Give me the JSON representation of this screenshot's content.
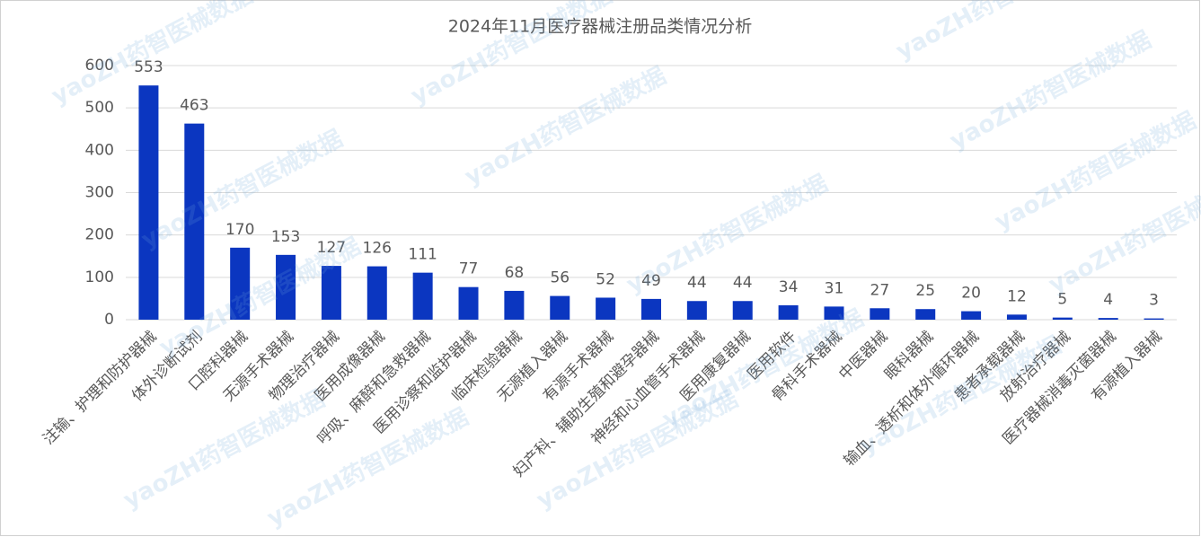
{
  "chart_data": {
    "type": "bar",
    "title": "2024年11月医疗器械注册品类情况分析",
    "categories": [
      "注输、护理和防护器械",
      "体外诊断试剂",
      "口腔科器械",
      "无源手术器械",
      "物理治疗器械",
      "医用成像器械",
      "呼吸、麻醉和急救器械",
      "医用诊察和监护器械",
      "临床检验器械",
      "无源植入器械",
      "有源手术器械",
      "妇产科、辅助生殖和避孕器械",
      "神经和心血管手术器械",
      "医用康复器械",
      "医用软件",
      "骨科手术器械",
      "中医器械",
      "眼科器械",
      "输血、透析和体外循环器械",
      "患者承载器械",
      "放射治疗器械",
      "医疗器械消毒灭菌器械",
      "有源植入器械"
    ],
    "values": [
      553,
      463,
      170,
      153,
      127,
      126,
      111,
      77,
      68,
      56,
      52,
      49,
      44,
      44,
      34,
      31,
      27,
      25,
      20,
      12,
      5,
      4,
      3
    ],
    "color": "#0b36c0",
    "ylim": [
      0,
      600
    ],
    "yticks": [
      0,
      100,
      200,
      300,
      400,
      500,
      600
    ],
    "grid": true,
    "watermark": "yaoZH药智医械数据"
  }
}
